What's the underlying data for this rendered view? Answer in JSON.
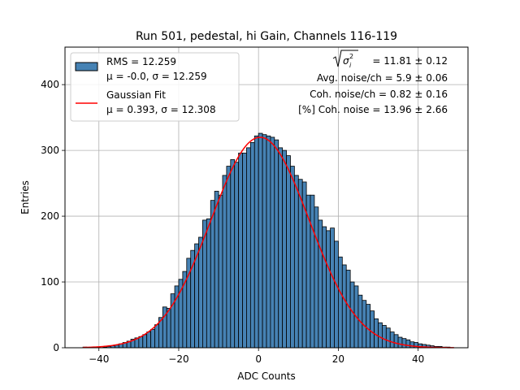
{
  "chart_data": {
    "type": "bar",
    "title": "Run 501, pedestal, hi Gain, Channels 116-119",
    "xlabel": "ADC Counts",
    "ylabel": "Entries",
    "xlim": [
      -48.5,
      52.5
    ],
    "ylim": [
      0,
      457
    ],
    "xticks": [
      -40,
      -20,
      0,
      20,
      40
    ],
    "yticks": [
      0,
      100,
      200,
      300,
      400
    ],
    "xtick_labels": [
      "−40",
      "−20",
      "0",
      "20",
      "40"
    ],
    "ytick_labels": [
      "0",
      "100",
      "200",
      "300",
      "400"
    ],
    "grid": true,
    "bins": {
      "start": -44,
      "width": 1
    },
    "histogram_counts": [
      1,
      0,
      0,
      0,
      0,
      1,
      2,
      3,
      4,
      6,
      8,
      10,
      13,
      15,
      17,
      20,
      24,
      28,
      35,
      46,
      62,
      60,
      82,
      94,
      104,
      116,
      136,
      148,
      158,
      168,
      194,
      196,
      224,
      238,
      232,
      262,
      276,
      286,
      282,
      296,
      296,
      304,
      312,
      322,
      326,
      324,
      322,
      320,
      316,
      304,
      300,
      292,
      276,
      262,
      256,
      252,
      232,
      232,
      214,
      194,
      184,
      178,
      182,
      162,
      138,
      126,
      118,
      100,
      94,
      80,
      72,
      66,
      56,
      44,
      38,
      34,
      30,
      24,
      20,
      16,
      14,
      12,
      9,
      8,
      6,
      5,
      4,
      3,
      2,
      2,
      1,
      1,
      0
    ],
    "series": [
      {
        "name": "RMS = 12.259",
        "name_line2": "μ = -0.0, σ = 12.259",
        "kind": "histogram",
        "color": "#4682b4",
        "edge": "#000000"
      },
      {
        "name": "Gaussian Fit",
        "name_line2": "μ = 0.393, σ = 12.308",
        "kind": "line",
        "color": "#ff0000",
        "amplitude": 320,
        "mu": 0.393,
        "sigma": 12.308
      }
    ],
    "legend_position": "upper left",
    "annotations": {
      "sigma_label": "= 11.81 ± 0.12",
      "avg_noise": "Avg. noise/ch = 5.9 ± 0.06",
      "coh_noise": "Coh. noise/ch = 0.82 ± 0.16",
      "coh_noise_pct": "[%] Coh. noise = 13.96 ± 2.66"
    }
  }
}
